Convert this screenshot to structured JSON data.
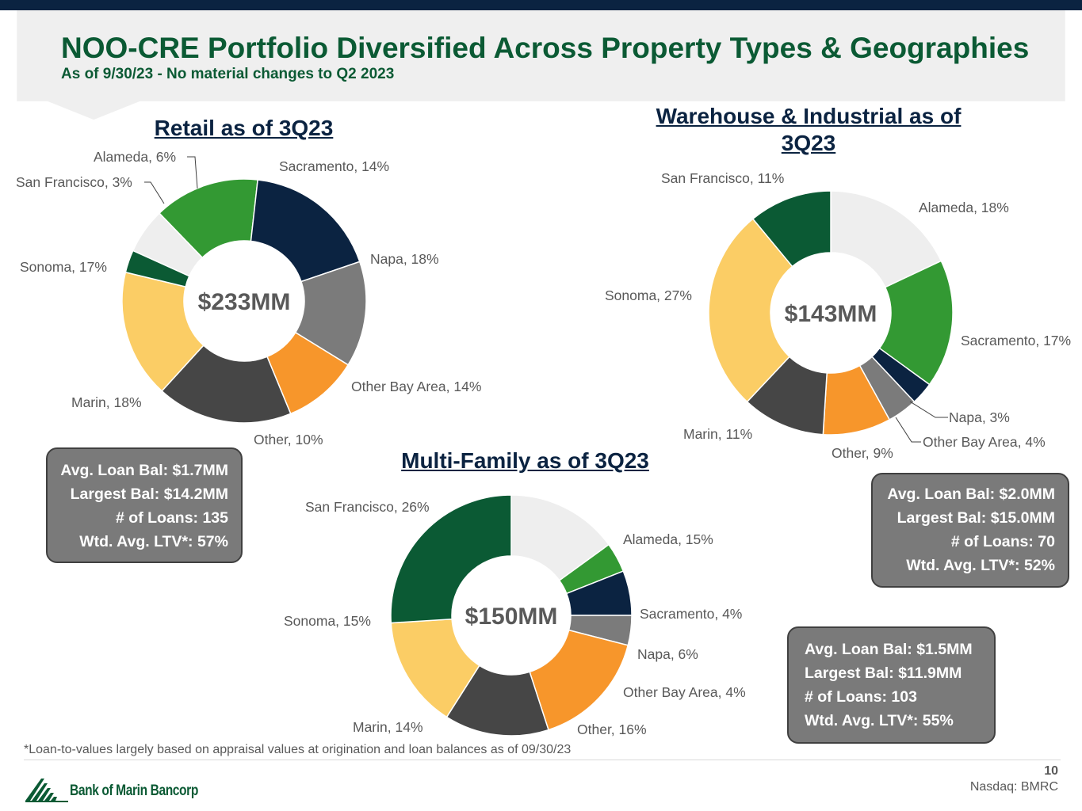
{
  "header": {
    "title": "NOO-CRE Portfolio Diversified Across Property Types & Geographies",
    "subtitle": "As of 9/30/23 - No material changes to Q2 2023"
  },
  "colors": {
    "navy": "#0b2341",
    "title_green": "#0b5a34",
    "header_band": "#efefef",
    "stats_box": "#7a7a7a"
  },
  "chart_data": [
    {
      "type": "pie",
      "donut": true,
      "title": "Retail as of 3Q23",
      "center_label": "$233MM",
      "slices": [
        {
          "name": "Sacramento",
          "label": "Sacramento, 14%",
          "value": 14,
          "color": "#339933"
        },
        {
          "name": "Napa",
          "label": "Napa, 18%",
          "value": 18,
          "color": "#0b2341"
        },
        {
          "name": "Other Bay Area",
          "label": "Other Bay Area, 14%",
          "value": 14,
          "color": "#7b7b7b"
        },
        {
          "name": "Other",
          "label": "Other, 10%",
          "value": 10,
          "color": "#f7962b"
        },
        {
          "name": "Marin",
          "label": "Marin, 18%",
          "value": 18,
          "color": "#464646"
        },
        {
          "name": "Sonoma",
          "label": "Sonoma, 17%",
          "value": 17,
          "color": "#fbcd65"
        },
        {
          "name": "San Francisco",
          "label": "San Francisco, 3%",
          "value": 3,
          "color": "#0b5a34"
        },
        {
          "name": "Alameda",
          "label": "Alameda, 6%",
          "value": 6,
          "color": "#eeeeee"
        }
      ]
    },
    {
      "type": "pie",
      "donut": true,
      "title": "Warehouse & Industrial as of 3Q23",
      "center_label": "$143MM",
      "slices": [
        {
          "name": "Alameda",
          "label": "Alameda, 18%",
          "value": 18,
          "color": "#eeeeee"
        },
        {
          "name": "Sacramento",
          "label": "Sacramento, 17%",
          "value": 17,
          "color": "#339933"
        },
        {
          "name": "Napa",
          "label": "Napa, 3%",
          "value": 3,
          "color": "#0b2341"
        },
        {
          "name": "Other Bay Area",
          "label": "Other Bay Area, 4%",
          "value": 4,
          "color": "#7b7b7b"
        },
        {
          "name": "Other",
          "label": "Other, 9%",
          "value": 9,
          "color": "#f7962b"
        },
        {
          "name": "Marin",
          "label": "Marin, 11%",
          "value": 11,
          "color": "#464646"
        },
        {
          "name": "Sonoma",
          "label": "Sonoma, 27%",
          "value": 27,
          "color": "#fbcd65"
        },
        {
          "name": "San Francisco",
          "label": "San Francisco, 11%",
          "value": 11,
          "color": "#0b5a34"
        }
      ]
    },
    {
      "type": "pie",
      "donut": true,
      "title": "Multi-Family as of 3Q23",
      "center_label": "$150MM",
      "slices": [
        {
          "name": "Alameda",
          "label": "Alameda, 15%",
          "value": 15,
          "color": "#eeeeee"
        },
        {
          "name": "Sacramento",
          "label": "Sacramento, 4%",
          "value": 4,
          "color": "#339933"
        },
        {
          "name": "Napa",
          "label": "Napa, 6%",
          "value": 6,
          "color": "#0b2341"
        },
        {
          "name": "Other Bay Area",
          "label": "Other Bay Area, 4%",
          "value": 4,
          "color": "#7b7b7b"
        },
        {
          "name": "Other",
          "label": "Other, 16%",
          "value": 16,
          "color": "#f7962b"
        },
        {
          "name": "Marin",
          "label": "Marin, 14%",
          "value": 14,
          "color": "#464646"
        },
        {
          "name": "Sonoma",
          "label": "Sonoma, 15%",
          "value": 15,
          "color": "#fbcd65"
        },
        {
          "name": "San Francisco",
          "label": "San Francisco, 26%",
          "value": 26,
          "color": "#0b5a34"
        }
      ]
    }
  ],
  "stats": {
    "retail": [
      "Avg. Loan Bal: $1.7MM",
      "Largest Bal: $14.2MM",
      "# of Loans: 135",
      "Wtd. Avg. LTV*: 57%"
    ],
    "warehouse": [
      "Avg. Loan Bal: $2.0MM",
      "Largest Bal: $15.0MM",
      "# of Loans: 70",
      "Wtd. Avg. LTV*: 52%"
    ],
    "multifamily": [
      "Avg. Loan Bal: $1.5MM",
      "Largest Bal: $11.9MM",
      "# of Loans: 103",
      "Wtd. Avg. LTV*: 55%"
    ]
  },
  "footer": {
    "footnote": "*Loan-to-values largely based on appraisal values at origination and loan balances as of 09/30/23",
    "page_number": "10",
    "ticker": "Nasdaq: BMRC",
    "logo_text": "Bank of Marin Bancorp"
  }
}
